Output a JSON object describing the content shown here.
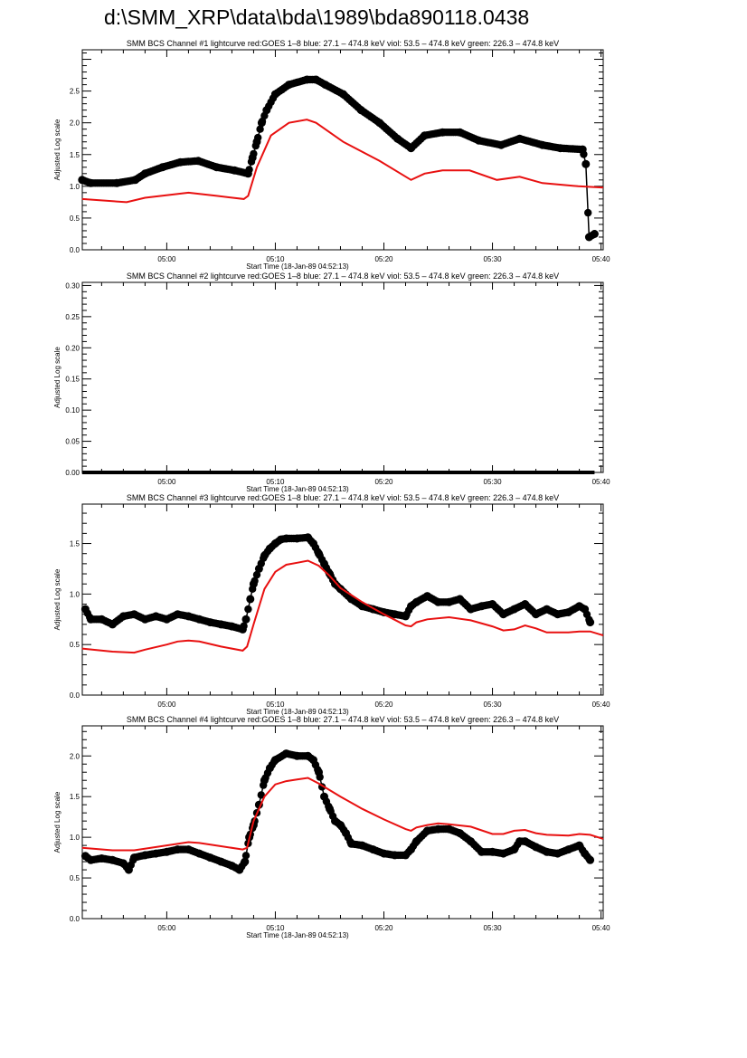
{
  "page_title": "d:\\SMM_XRP\\data\\bda\\1989\\bda890118.0438",
  "colors": {
    "goes": "#e81010",
    "bcs": "#000000",
    "axis": "#000000"
  },
  "chart_data": [
    {
      "type": "scatter",
      "title": "SMM BCS Channel #1 lightcurve  red:GOES 1–8  blue: 27.1 – 474.8 keV  viol: 53.5 – 474.8 keV  green: 226.3 – 474.8 keV",
      "xlabel": "Start Time (18-Jan-89 04:52:13)",
      "ylabel": "Adjusted Log scale",
      "x_units": "minutes after 05:00",
      "xlim": [
        -7.78,
        40.2
      ],
      "x_ticks": [
        0,
        10,
        20,
        30,
        40
      ],
      "x_tick_labels": [
        "05:00",
        "05:10",
        "05:20",
        "05:30",
        "05:40"
      ],
      "ylim": [
        0,
        3.15
      ],
      "y_ticks": [
        0,
        0.5,
        1,
        1.5,
        2,
        2.5
      ],
      "y_tick_labels": [
        "0.0",
        "0.5",
        "1.0",
        "1.5",
        "2.0",
        "2.5"
      ],
      "series": [
        {
          "name": "BCS Channel #1",
          "style": "dots",
          "color": "#000000",
          "x": [
            -7.8,
            -7,
            -4.6,
            -2.9,
            -2,
            -0.4,
            1.25,
            2.9,
            4.6,
            6.25,
            7.5,
            7.9,
            8.3,
            8.75,
            9.2,
            10,
            11.25,
            12.9,
            13.75,
            14.6,
            16.25,
            17.9,
            19.6,
            21.25,
            22.5,
            23.75,
            25.4,
            27,
            28.75,
            30.8,
            32.5,
            34.6,
            36.25,
            38.3,
            38.6,
            38.9,
            39.4
          ],
          "y": [
            1.1,
            1.05,
            1.05,
            1.1,
            1.2,
            1.3,
            1.38,
            1.4,
            1.3,
            1.25,
            1.2,
            1.45,
            1.7,
            2.0,
            2.2,
            2.45,
            2.6,
            2.68,
            2.68,
            2.6,
            2.45,
            2.2,
            2.0,
            1.75,
            1.6,
            1.8,
            1.85,
            1.85,
            1.72,
            1.65,
            1.75,
            1.65,
            1.6,
            1.58,
            1.35,
            0.2,
            0.25
          ]
        },
        {
          "name": "GOES 1-8",
          "style": "line",
          "color": "#e81010",
          "x": [
            -7.8,
            -3.7,
            -2,
            2,
            4.6,
            7.1,
            7.5,
            8.3,
            9.6,
            11.25,
            12.9,
            13.75,
            16.25,
            19.6,
            22.5,
            23.75,
            25.4,
            27.9,
            30.4,
            32.5,
            34.6,
            37.9,
            40.2
          ],
          "y": [
            0.8,
            0.75,
            0.82,
            0.9,
            0.85,
            0.8,
            0.85,
            1.3,
            1.8,
            2.0,
            2.05,
            2.0,
            1.7,
            1.4,
            1.1,
            1.2,
            1.25,
            1.25,
            1.1,
            1.15,
            1.05,
            1.0,
            0.98
          ]
        }
      ]
    },
    {
      "type": "scatter",
      "title": "SMM BCS Channel #2 lightcurve  red:GOES 1–8  blue: 27.1 – 474.8 keV  viol: 53.5 – 474.8 keV  green: 226.3 – 474.8 keV",
      "xlabel": "Start Time (18-Jan-89 04:52:13)",
      "ylabel": "Adjusted Log scale",
      "x_units": "minutes after 05:00",
      "xlim": [
        -7.78,
        40.2
      ],
      "x_ticks": [
        0,
        10,
        20,
        30,
        40
      ],
      "x_tick_labels": [
        "05:00",
        "05:10",
        "05:20",
        "05:30",
        "05:40"
      ],
      "ylim": [
        0,
        0.305
      ],
      "y_ticks": [
        0,
        0.05,
        0.1,
        0.15,
        0.2,
        0.25,
        0.3
      ],
      "y_tick_labels": [
        "0.00",
        "0.05",
        "0.10",
        "0.15",
        "0.20",
        "0.25",
        "0.30"
      ],
      "series": [
        {
          "name": "BCS Channel #2",
          "style": "dots",
          "color": "#000000",
          "x": [
            -7.8,
            39.4
          ],
          "y": [
            0,
            0
          ]
        }
      ]
    },
    {
      "type": "scatter",
      "title": "SMM BCS Channel #3 lightcurve  red:GOES 1–8  blue: 27.1 – 474.8 keV  viol: 53.5 – 474.8 keV  green: 226.3 – 474.8 keV",
      "xlabel": "Start Time (18-Jan-89 04:52:13)",
      "ylabel": "Adjusted Log scale",
      "x_units": "minutes after 05:00",
      "xlim": [
        -7.78,
        40.2
      ],
      "x_ticks": [
        0,
        10,
        20,
        30,
        40
      ],
      "x_tick_labels": [
        "05:00",
        "05:10",
        "05:20",
        "05:30",
        "05:40"
      ],
      "ylim": [
        0,
        1.89
      ],
      "y_ticks": [
        0,
        0.5,
        1,
        1.5
      ],
      "y_tick_labels": [
        "0.0",
        "0.5",
        "1.0",
        "1.5"
      ],
      "series": [
        {
          "name": "BCS Channel #3",
          "style": "dots",
          "color": "#000000",
          "x": [
            -7.5,
            -7,
            -6,
            -5,
            -4,
            -3,
            -2,
            -1,
            0,
            1,
            2,
            3,
            4,
            5,
            6,
            7,
            7.3,
            7.7,
            8,
            8.5,
            9,
            9.5,
            10,
            10.5,
            11,
            12,
            13,
            13.5,
            14,
            14.5,
            15,
            15.5,
            16,
            17,
            18,
            19,
            20,
            21,
            22,
            22.5,
            23,
            24,
            25,
            26,
            27,
            28,
            29,
            30,
            31,
            32,
            33,
            34,
            35,
            36,
            37,
            38,
            38.5,
            39
          ],
          "y": [
            0.85,
            0.75,
            0.75,
            0.7,
            0.78,
            0.8,
            0.75,
            0.78,
            0.75,
            0.8,
            0.78,
            0.75,
            0.72,
            0.7,
            0.68,
            0.65,
            0.75,
            0.95,
            1.1,
            1.25,
            1.38,
            1.45,
            1.5,
            1.54,
            1.55,
            1.55,
            1.56,
            1.5,
            1.4,
            1.3,
            1.2,
            1.1,
            1.05,
            0.95,
            0.88,
            0.85,
            0.82,
            0.8,
            0.78,
            0.88,
            0.92,
            0.98,
            0.92,
            0.92,
            0.95,
            0.85,
            0.88,
            0.9,
            0.8,
            0.85,
            0.9,
            0.8,
            0.85,
            0.8,
            0.82,
            0.88,
            0.85,
            0.72
          ]
        },
        {
          "name": "GOES 1-8",
          "style": "line",
          "color": "#e81010",
          "x": [
            -7.8,
            -5,
            -3,
            -2,
            0,
            1,
            2,
            3,
            5,
            7,
            7.4,
            8,
            9,
            10,
            11,
            12,
            13,
            14,
            15,
            16,
            18,
            20,
            22,
            22.5,
            23,
            24,
            26,
            28,
            30,
            31,
            32,
            33,
            34,
            35,
            37,
            38,
            39,
            40.2
          ],
          "y": [
            0.46,
            0.43,
            0.42,
            0.45,
            0.5,
            0.53,
            0.54,
            0.53,
            0.48,
            0.44,
            0.48,
            0.7,
            1.05,
            1.22,
            1.29,
            1.31,
            1.33,
            1.28,
            1.18,
            1.06,
            0.92,
            0.8,
            0.69,
            0.68,
            0.72,
            0.75,
            0.77,
            0.74,
            0.68,
            0.64,
            0.65,
            0.69,
            0.66,
            0.62,
            0.62,
            0.63,
            0.63,
            0.59
          ]
        }
      ]
    },
    {
      "type": "scatter",
      "title": "SMM BCS Channel #4 lightcurve  red:GOES 1–8  blue: 27.1 – 474.8 keV  viol: 53.5 – 474.8 keV  green: 226.3 – 474.8 keV",
      "xlabel": "Start Time (18-Jan-89 04:52:13)",
      "ylabel": "Adjusted Log scale",
      "x_units": "minutes after 05:00",
      "xlim": [
        -7.78,
        40.2
      ],
      "x_ticks": [
        0,
        10,
        20,
        30,
        40
      ],
      "x_tick_labels": [
        "05:00",
        "05:10",
        "05:20",
        "05:30",
        "05:40"
      ],
      "ylim": [
        0,
        2.37
      ],
      "y_ticks": [
        0,
        0.5,
        1,
        1.5,
        2
      ],
      "y_tick_labels": [
        "0.0",
        "0.5",
        "1.0",
        "1.5",
        "2.0"
      ],
      "series": [
        {
          "name": "BCS Channel #4",
          "style": "dots",
          "color": "#000000",
          "x": [
            -7.5,
            -7,
            -6,
            -5,
            -4,
            -3.5,
            -3,
            -2,
            -1,
            0,
            1,
            2,
            3,
            4,
            5,
            6,
            6.7,
            7.2,
            7.6,
            8,
            8.5,
            9,
            9.5,
            10,
            11,
            12,
            13,
            13.5,
            14,
            14.5,
            15,
            15.5,
            16,
            16.5,
            17,
            18,
            19,
            20,
            21,
            22,
            22.5,
            23,
            24,
            25,
            26,
            27,
            28,
            29,
            30,
            31,
            32,
            32.5,
            33,
            34,
            35,
            36,
            37,
            38,
            38.5,
            39
          ],
          "y": [
            0.77,
            0.72,
            0.74,
            0.72,
            0.68,
            0.6,
            0.75,
            0.78,
            0.8,
            0.82,
            0.85,
            0.85,
            0.8,
            0.75,
            0.7,
            0.65,
            0.6,
            0.7,
            1.0,
            1.15,
            1.4,
            1.7,
            1.85,
            1.95,
            2.03,
            2.0,
            2.0,
            1.95,
            1.8,
            1.5,
            1.35,
            1.2,
            1.15,
            1.05,
            0.92,
            0.9,
            0.85,
            0.8,
            0.78,
            0.78,
            0.85,
            0.95,
            1.08,
            1.1,
            1.1,
            1.05,
            0.95,
            0.82,
            0.82,
            0.8,
            0.85,
            0.95,
            0.95,
            0.88,
            0.82,
            0.8,
            0.85,
            0.9,
            0.8,
            0.72
          ]
        },
        {
          "name": "GOES 1-8",
          "style": "line",
          "color": "#e81010",
          "x": [
            -7.8,
            -5,
            -3,
            0,
            2,
            3,
            5,
            7,
            7.4,
            8,
            9,
            10,
            11,
            12,
            13,
            14,
            15,
            16,
            18,
            20,
            22,
            22.5,
            23,
            24,
            25,
            26,
            28,
            30,
            31,
            32,
            33,
            34,
            35,
            37,
            38,
            39,
            40.2
          ],
          "y": [
            0.87,
            0.84,
            0.84,
            0.9,
            0.94,
            0.93,
            0.89,
            0.85,
            0.87,
            1.2,
            1.5,
            1.65,
            1.69,
            1.71,
            1.73,
            1.66,
            1.58,
            1.5,
            1.35,
            1.22,
            1.1,
            1.08,
            1.12,
            1.15,
            1.17,
            1.16,
            1.13,
            1.04,
            1.04,
            1.08,
            1.09,
            1.05,
            1.03,
            1.02,
            1.04,
            1.03,
            0.98
          ]
        }
      ]
    }
  ]
}
